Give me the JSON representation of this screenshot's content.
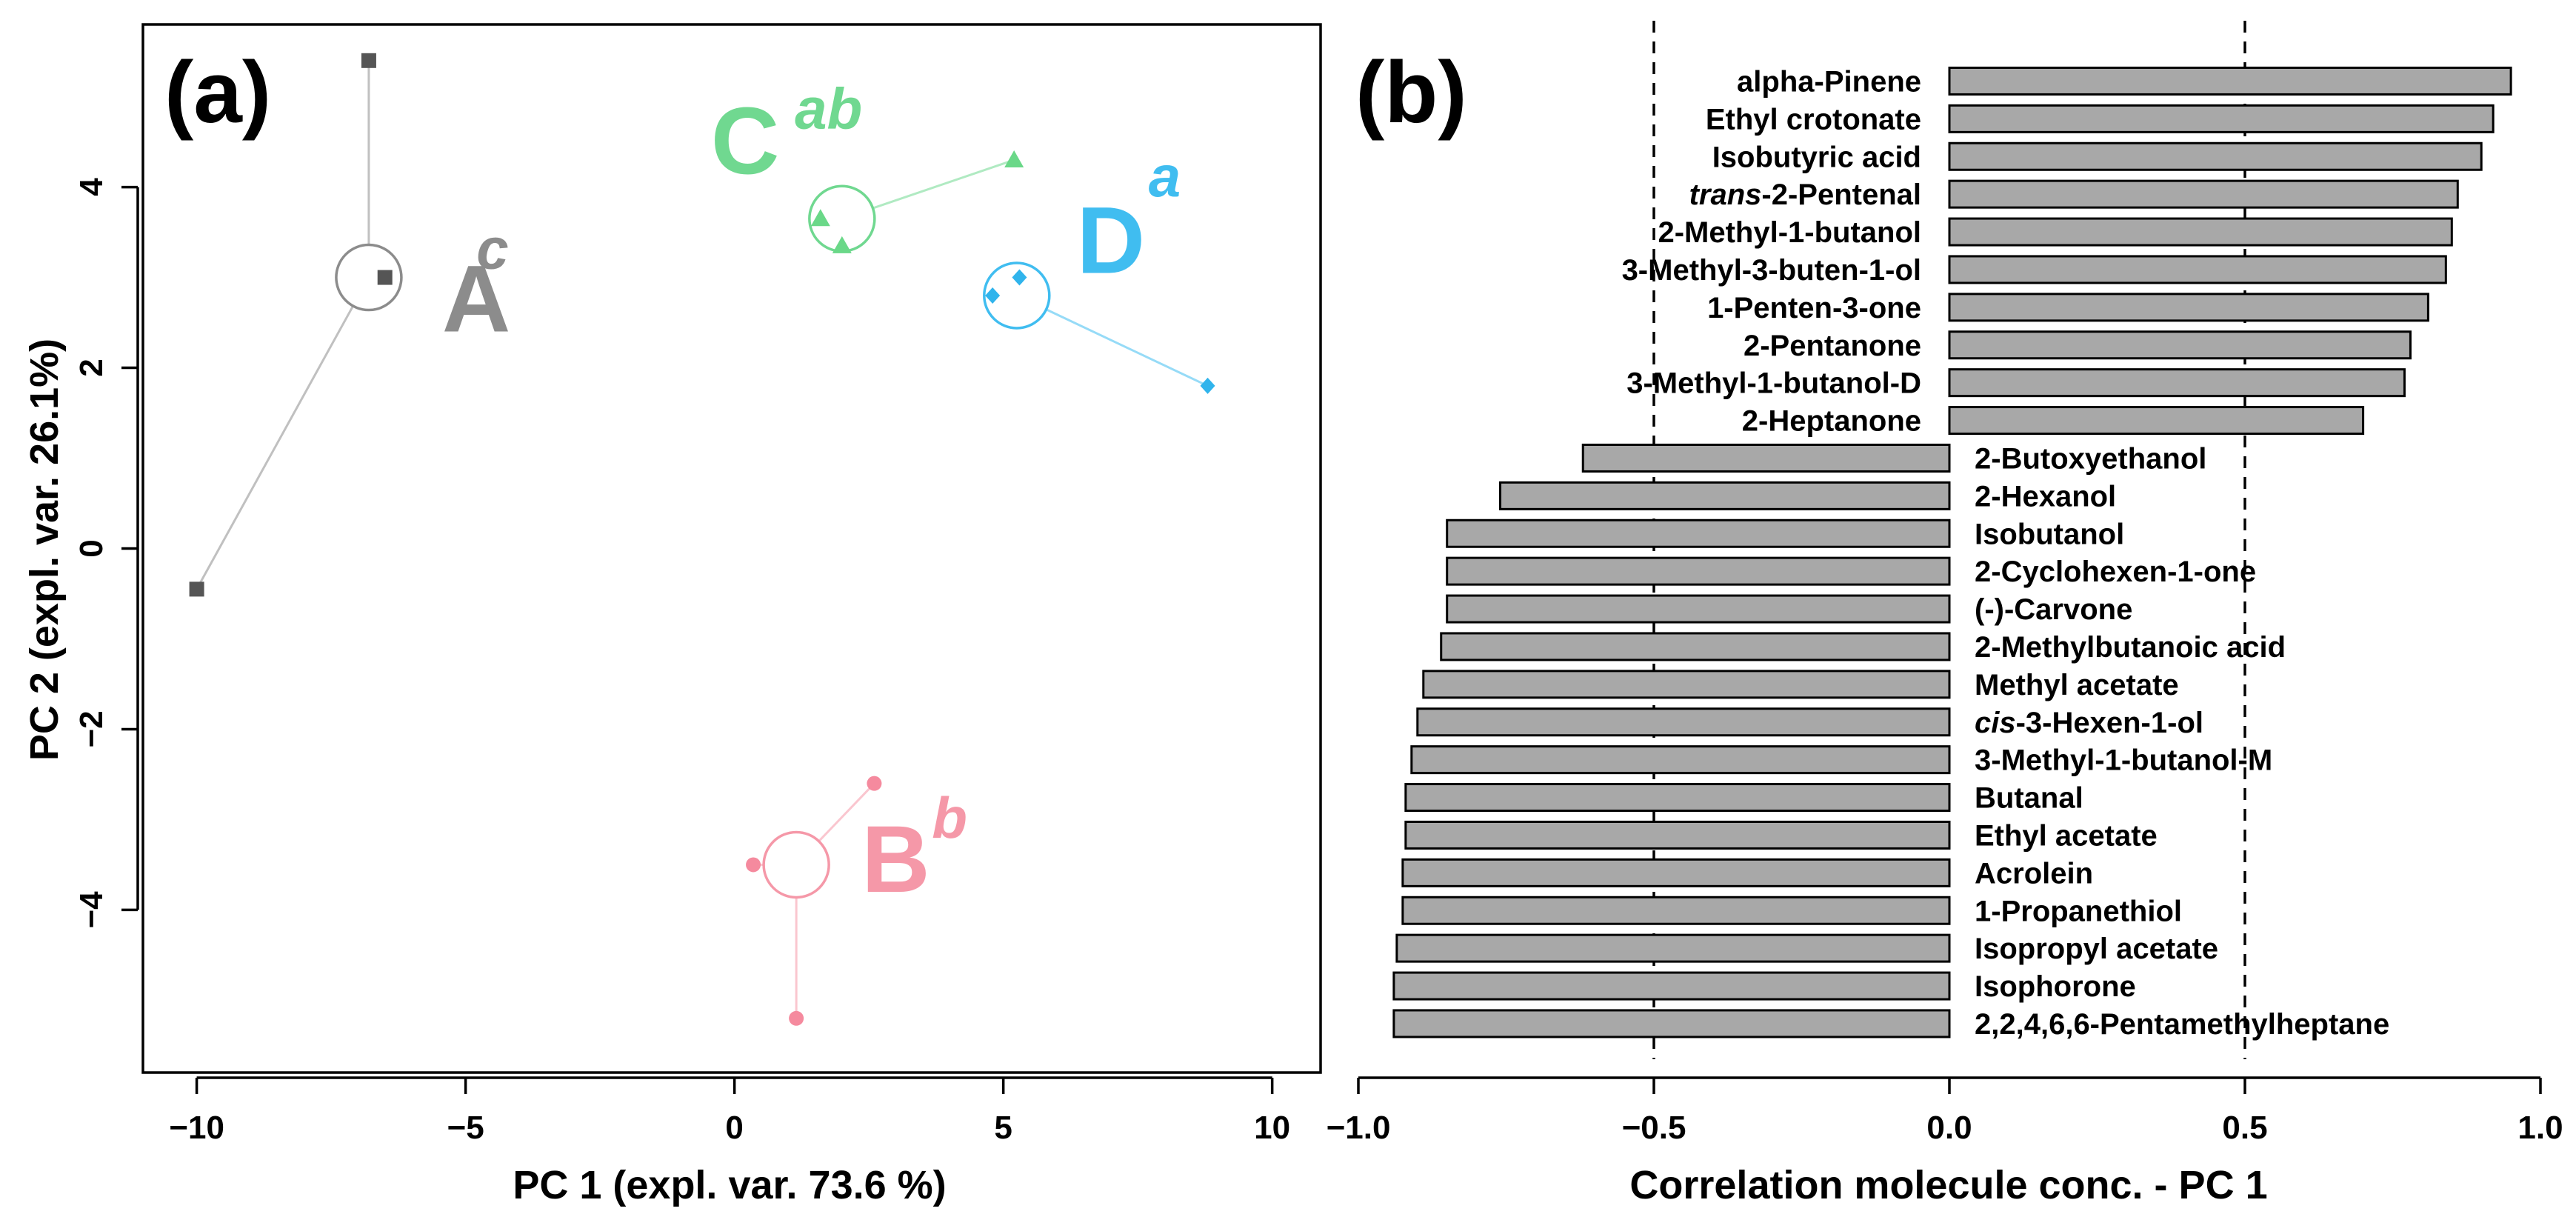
{
  "chart_data": [
    {
      "panel_label": "(a)",
      "type": "scatter",
      "title": "",
      "xlabel": "PC 1 (expl. var. 73.6 %)",
      "ylabel": "PC 2 (expl. var. 26.1%)",
      "xlim": [
        -11.0,
        10.9
      ],
      "ylim": [
        -5.8,
        5.8
      ],
      "xticks": [
        -10,
        -5,
        0,
        5,
        10
      ],
      "yticks": [
        -4,
        -2,
        0,
        2,
        4
      ],
      "xtick_labels": [
        "−10",
        "−5",
        "0",
        "5",
        "10"
      ],
      "ytick_labels": [
        "−4",
        "−2",
        "0",
        "2",
        "4"
      ],
      "groups": [
        {
          "name": "A",
          "superscript": "c",
          "color": "#8c8c8c",
          "point_color": "#555555",
          "marker": "square",
          "centroid": [
            -6.8,
            3.0
          ],
          "points": [
            [
              -6.8,
              5.4
            ],
            [
              -6.5,
              3.0
            ],
            [
              -10.0,
              -0.45
            ]
          ],
          "label_pos": [
            -4.8,
            2.4
          ],
          "sup_pos": [
            -4.5,
            3.1
          ]
        },
        {
          "name": "B",
          "superscript": "b",
          "color": "#f598a8",
          "point_color": "#f58a9e",
          "marker": "circle",
          "centroid": [
            1.15,
            -3.5
          ],
          "points": [
            [
              2.6,
              -2.6
            ],
            [
              0.35,
              -3.5
            ],
            [
              1.15,
              -5.2
            ]
          ],
          "label_pos": [
            3.0,
            -3.8
          ],
          "sup_pos": [
            4.0,
            -3.2
          ]
        },
        {
          "name": "C",
          "superscript": "ab",
          "color": "#70d890",
          "point_color": "#6ad888",
          "marker": "triangle",
          "centroid": [
            2.0,
            3.65
          ],
          "points": [
            [
              5.2,
              4.3
            ],
            [
              1.6,
              3.65
            ],
            [
              2.0,
              3.35
            ]
          ],
          "label_pos": [
            0.2,
            4.15
          ],
          "sup_pos": [
            1.75,
            4.65
          ]
        },
        {
          "name": "D",
          "superscript": "a",
          "color": "#40bdf0",
          "point_color": "#30b4ec",
          "marker": "diamond",
          "centroid": [
            5.25,
            2.8
          ],
          "points": [
            [
              8.8,
              1.8
            ],
            [
              4.8,
              2.8
            ],
            [
              5.3,
              3.0
            ]
          ],
          "label_pos": [
            7.0,
            3.05
          ],
          "sup_pos": [
            8.0,
            3.9
          ]
        }
      ]
    },
    {
      "panel_label": "(b)",
      "type": "bar",
      "orientation": "horizontal",
      "xlabel": "Correlation molecule conc. - PC 1",
      "ylabel": "",
      "xlim": [
        -1.0,
        1.0
      ],
      "xticks": [
        -1.0,
        -0.5,
        0.0,
        0.5,
        1.0
      ],
      "xtick_labels": [
        "−1.0",
        "−0.5",
        "0.0",
        "0.5",
        "1.0"
      ],
      "reference_lines": [
        -0.5,
        0.5
      ],
      "bar_color": "#a8a8a8",
      "categories": [
        {
          "name": "alpha-Pinene",
          "prefix": "",
          "value": 0.95
        },
        {
          "name": "Ethyl crotonate",
          "prefix": "",
          "value": 0.92
        },
        {
          "name": "Isobutyric acid",
          "prefix": "",
          "value": 0.9
        },
        {
          "name": "-2-Pentenal",
          "prefix": "trans",
          "value": 0.86
        },
        {
          "name": "2-Methyl-1-butanol",
          "prefix": "",
          "value": 0.85
        },
        {
          "name": "3-Methyl-3-buten-1-ol",
          "prefix": "",
          "value": 0.84
        },
        {
          "name": "1-Penten-3-one",
          "prefix": "",
          "value": 0.81
        },
        {
          "name": "2-Pentanone",
          "prefix": "",
          "value": 0.78
        },
        {
          "name": "3-Methyl-1-butanol-D",
          "prefix": "",
          "value": 0.77
        },
        {
          "name": "2-Heptanone",
          "prefix": "",
          "value": 0.7
        },
        {
          "name": "2-Butoxyethanol",
          "prefix": "",
          "value": -0.62
        },
        {
          "name": "2-Hexanol",
          "prefix": "",
          "value": -0.76
        },
        {
          "name": "Isobutanol",
          "prefix": "",
          "value": -0.85
        },
        {
          "name": "2-Cyclohexen-1-one",
          "prefix": "",
          "value": -0.85
        },
        {
          "name": "(-)-Carvone",
          "prefix": "",
          "value": -0.85
        },
        {
          "name": "2-Methylbutanoic acid",
          "prefix": "",
          "value": -0.86
        },
        {
          "name": "Methyl acetate",
          "prefix": "",
          "value": -0.89
        },
        {
          "name": "-3-Hexen-1-ol",
          "prefix": "cis",
          "value": -0.9
        },
        {
          "name": "3-Methyl-1-butanol-M",
          "prefix": "",
          "value": -0.91
        },
        {
          "name": "Butanal",
          "prefix": "",
          "value": -0.92
        },
        {
          "name": "Ethyl acetate",
          "prefix": "",
          "value": -0.92
        },
        {
          "name": "Acrolein",
          "prefix": "",
          "value": -0.925
        },
        {
          "name": "1-Propanethiol",
          "prefix": "",
          "value": -0.925
        },
        {
          "name": "Isopropyl acetate",
          "prefix": "",
          "value": -0.935
        },
        {
          "name": "Isophorone",
          "prefix": "",
          "value": -0.94
        },
        {
          "name": "2,2,4,6,6-Pentamethylheptane",
          "prefix": "",
          "value": -0.94
        }
      ]
    }
  ]
}
